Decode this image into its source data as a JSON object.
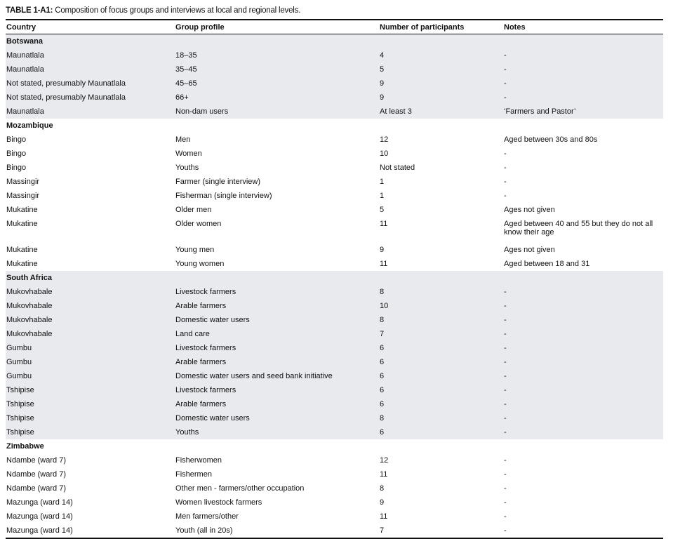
{
  "title": {
    "label": "TABLE 1-A1:",
    "text": " Composition of focus groups and interviews at local and regional levels."
  },
  "columns": [
    "Country",
    "Group profile",
    "Number of participants",
    "Notes"
  ],
  "colors": {
    "shaded_row": "#e9eaee",
    "rule": "#111111"
  },
  "sections": [
    {
      "country": "Botswana",
      "shaded": true,
      "rows": [
        [
          "Maunatlala",
          "18–35",
          "4",
          "-"
        ],
        [
          "Maunatlala",
          "35–45",
          "5",
          "-"
        ],
        [
          "Not stated, presumably Maunatlala",
          "45–65",
          "9",
          "-"
        ],
        [
          "Not stated, presumably Maunatlala",
          "66+",
          "9",
          "-"
        ],
        [
          "Maunatlala",
          "Non-dam users",
          "At least 3",
          "‘Farmers and Pastor’"
        ]
      ]
    },
    {
      "country": "Mozambique",
      "shaded": false,
      "rows": [
        [
          "Bingo",
          "Men",
          "12",
          "Aged between 30s and 80s"
        ],
        [
          "Bingo",
          "Women",
          "10",
          "-"
        ],
        [
          "Bingo",
          "Youths",
          "Not stated",
          "-"
        ],
        [
          "Massingir",
          "Farmer (single interview)",
          "1",
          "-"
        ],
        [
          "Massingir",
          "Fisherman (single interview)",
          "1",
          "-"
        ],
        [
          "Mukatine",
          "Older men",
          "5",
          "Ages not given"
        ],
        [
          "Mukatine",
          "Older women",
          "11",
          "Aged between 40 and 55 but they do not all know their age"
        ],
        [
          "Mukatine",
          "Young men",
          "9",
          "Ages not given"
        ],
        [
          "Mukatine",
          "Young women",
          "11",
          "Aged between 18 and 31"
        ]
      ]
    },
    {
      "country": "South Africa",
      "shaded": true,
      "rows": [
        [
          "Mukovhabale",
          "Livestock farmers",
          "8",
          "-"
        ],
        [
          "Mukovhabale",
          "Arable farmers",
          "10",
          "-"
        ],
        [
          "Mukovhabale",
          "Domestic water users",
          "8",
          "-"
        ],
        [
          "Mukovhabale",
          "Land care",
          "7",
          "-"
        ],
        [
          "Gumbu",
          "Livestock farmers",
          "6",
          "-"
        ],
        [
          "Gumbu",
          "Arable farmers",
          "6",
          "-"
        ],
        [
          "Gumbu",
          "Domestic water users and seed bank initiative",
          "6",
          "-"
        ],
        [
          "Tshipise",
          "Livestock farmers",
          "6",
          "-"
        ],
        [
          "Tshipise",
          "Arable farmers",
          "6",
          "-"
        ],
        [
          "Tshipise",
          "Domestic water users",
          "8",
          "-"
        ],
        [
          "Tshipise",
          "Youths",
          "6",
          "-"
        ]
      ]
    },
    {
      "country": "Zimbabwe",
      "shaded": false,
      "rows": [
        [
          "Ndambe (ward 7)",
          "Fisherwomen",
          "12",
          "-"
        ],
        [
          "Ndambe (ward 7)",
          "Fishermen",
          "11",
          "-"
        ],
        [
          "Ndambe (ward 7)",
          "Other men - farmers/other occupation",
          "8",
          "-"
        ],
        [
          "Mazunga (ward 14)",
          "Women livestock farmers",
          "9",
          "-"
        ],
        [
          "Mazunga (ward 14)",
          "Men farmers/other",
          "11",
          "-"
        ],
        [
          "Mazunga (ward 14)",
          "Youth (all in 20s)",
          "7",
          "-"
        ]
      ]
    }
  ]
}
